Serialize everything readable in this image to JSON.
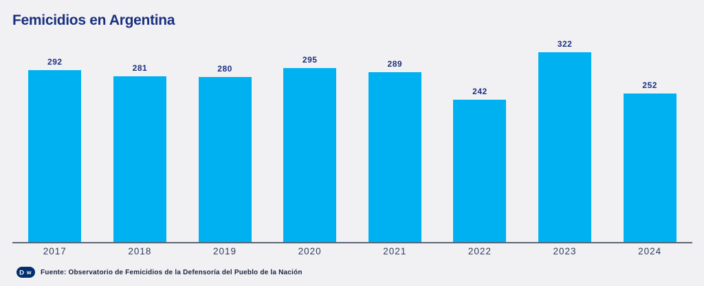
{
  "title": "Femicidios en Argentina",
  "footer": {
    "logo": "dw-logo",
    "source": "Fuente: Observatorio de Femicidios de la Defensoría del Pueblo de la Nación"
  },
  "colors": {
    "background": "#f1f1f3",
    "bar": "#00b1f2",
    "title_text": "#1b2f80",
    "value_label_text": "#1b2f80",
    "year_label_text": "#2e3a5e",
    "axis_line": "#5b6474",
    "footer_text": "#1a2440",
    "logo_background": "#002e6e"
  },
  "chart_data": {
    "type": "bar",
    "title": "Femicidios en Argentina",
    "categories": [
      "2017",
      "2018",
      "2019",
      "2020",
      "2021",
      "2022",
      "2023",
      "2024"
    ],
    "values": [
      292,
      281,
      280,
      295,
      289,
      242,
      322,
      252
    ],
    "xlabel": "",
    "ylabel": "",
    "ylim": [
      0,
      340
    ],
    "grid": false,
    "legend": false,
    "value_labels_shown": true,
    "bar_color": "#00b1f2"
  }
}
